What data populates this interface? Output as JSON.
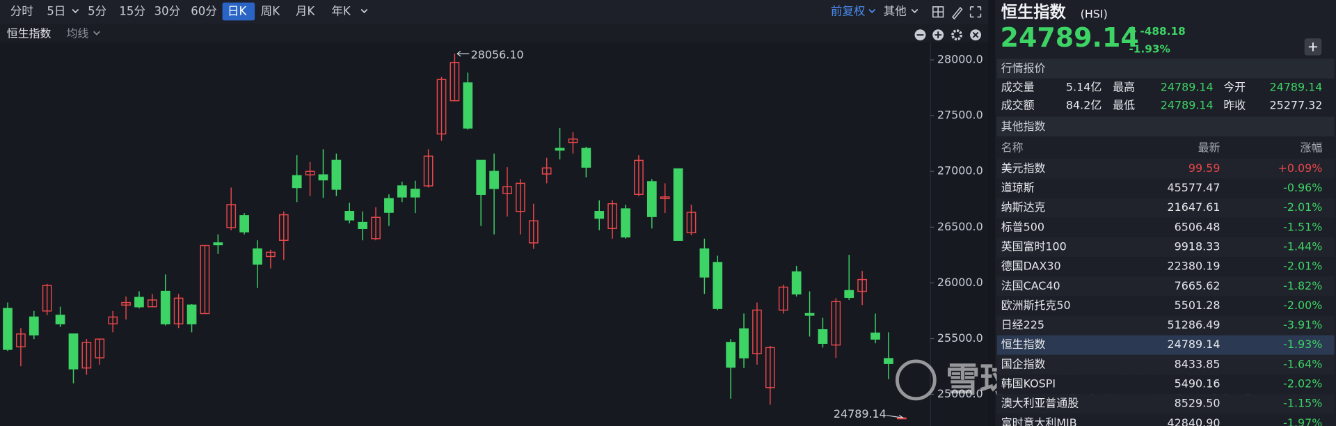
{
  "toolbar": {
    "periods": [
      "分时",
      "5日",
      "5分",
      "15分",
      "30分",
      "60分",
      "日K",
      "周K",
      "月K",
      "年K"
    ],
    "adjust": "前复权",
    "more": "其他"
  },
  "subbar": {
    "name": "恒生指数",
    "ma": "均线"
  },
  "chart_data": {
    "type": "candlestick",
    "up_color": "#e8474a",
    "down_color": "#3ed365",
    "open": [
      25771,
      25427,
      25694,
      25748,
      25710,
      25542,
      25237,
      25328,
      25633,
      25801,
      25870,
      25786,
      25924,
      25633,
      25801,
      25725,
      26359,
      26496,
      26603,
      26305,
      26237,
      26382,
      26962,
      26969,
      26969,
      27099,
      26641,
      26542,
      26397,
      26756,
      26870,
      26840,
      26870,
      27336,
      27634,
      27794,
      27099,
      27000,
      26802,
      26641,
      26359,
      26977,
      27206,
      27260,
      27206,
      26641,
      26488,
      26664,
      26794,
      26908,
      26756,
      27023,
      26450,
      26305,
      26183,
      25466,
      25588,
      25366,
      25061,
      25756,
      26099,
      25725,
      25580,
      25443,
      25931,
      25924,
      25550,
      25321,
      24789.14
    ],
    "high": [
      25824,
      25595,
      25748,
      25992,
      25786,
      25542,
      25496,
      25496,
      25748,
      25878,
      25924,
      25901,
      26076,
      25901,
      25809,
      26336,
      26435,
      26855,
      26626,
      26382,
      26298,
      26641,
      27145,
      27084,
      27199,
      27160,
      26718,
      26641,
      26679,
      26794,
      26908,
      26916,
      27199,
      27847,
      28056.1,
      27886,
      27099,
      27160,
      27038,
      26931,
      26710,
      27122,
      27389,
      27351,
      27221,
      26741,
      26741,
      26702,
      27145,
      26931,
      26893,
      27023,
      26702,
      26397,
      26244,
      25496,
      25725,
      25824,
      25435,
      25985,
      26153,
      25924,
      25687,
      25863,
      26252,
      26107,
      25725,
      25557,
      24789.14
    ],
    "low": [
      25389,
      25252,
      25496,
      25710,
      25603,
      25099,
      25176,
      25267,
      25557,
      25672,
      25771,
      25786,
      25618,
      25595,
      25557,
      25725,
      26260,
      26473,
      26435,
      25954,
      26130,
      26206,
      26725,
      26779,
      26763,
      26779,
      26534,
      26382,
      26382,
      26511,
      26725,
      26626,
      26855,
      27275,
      27634,
      27374,
      26511,
      26435,
      26595,
      26435,
      26305,
      26893,
      27107,
      27160,
      26947,
      26473,
      26397,
      26397,
      26779,
      26488,
      26626,
      26382,
      26427,
      25901,
      25756,
      24962,
      25237,
      25267,
      24908,
      25725,
      25878,
      25519,
      25420,
      25328,
      25847,
      25801,
      25458,
      25137,
      24789.14
    ],
    "close": [
      25404,
      25542,
      25534,
      25977,
      25633,
      25229,
      25466,
      25496,
      25694,
      25824,
      25786,
      25847,
      25633,
      25863,
      25633,
      26336,
      26343,
      26702,
      26458,
      26168,
      26275,
      26611,
      26855,
      27000,
      26924,
      26840,
      26565,
      26488,
      26588,
      26633,
      26771,
      26771,
      27137,
      27824,
      27977,
      27389,
      26794,
      26847,
      26863,
      26893,
      26557,
      27031,
      27191,
      27290,
      27038,
      26580,
      26710,
      26412,
      27099,
      26595,
      26771,
      26382,
      26633,
      26053,
      25771,
      25244,
      25328,
      25756,
      25420,
      25962,
      25901,
      25710,
      25458,
      25832,
      25870,
      26030,
      25496,
      25277.32,
      24789.14
    ],
    "ylim": [
      24770,
      28140
    ],
    "yticks": [
      {
        "value": 25000,
        "label": "25000.0"
      },
      {
        "value": 25500,
        "label": "25500.0"
      },
      {
        "value": 26000,
        "label": "26000.0"
      },
      {
        "value": 26500,
        "label": "26500.0"
      },
      {
        "value": 27000,
        "label": "27000.0"
      },
      {
        "value": 27500,
        "label": "27500.0"
      },
      {
        "value": 28000,
        "label": "28000.0"
      }
    ],
    "annotations": [
      {
        "value": 28056.1,
        "label": "28056.10"
      },
      {
        "value": 24789.14,
        "label": "24789.14"
      }
    ]
  },
  "watermark": "雪球 · 每日经济新闻",
  "quote": {
    "title": "恒生指数",
    "code": "(HSI)",
    "price": "24789.14",
    "change": "-488.18",
    "change_pct": "-1.93%"
  },
  "market": {
    "header": "行情报价",
    "rows": [
      [
        "成交量",
        "5.14亿",
        "最高",
        "24789.14",
        "今开",
        "24789.14"
      ],
      [
        "成交额",
        "84.2亿",
        "最低",
        "24789.14",
        "昨收",
        "25277.32"
      ]
    ]
  },
  "others": {
    "header": "其他指数",
    "columns": [
      "名称",
      "最新",
      "涨幅"
    ],
    "highlight": 9,
    "rows": [
      [
        "美元指数",
        "99.59",
        "+0.09%"
      ],
      [
        "道琼斯",
        "45577.47",
        "-0.96%"
      ],
      [
        "纳斯达克",
        "21647.61",
        "-2.01%"
      ],
      [
        "标普500",
        "6506.48",
        "-1.51%"
      ],
      [
        "英国富时100",
        "9918.33",
        "-1.44%"
      ],
      [
        "德国DAX30",
        "22380.19",
        "-2.01%"
      ],
      [
        "法国CAC40",
        "7665.62",
        "-1.82%"
      ],
      [
        "欧洲斯托克50",
        "5501.28",
        "-2.00%"
      ],
      [
        "日经225",
        "51286.49",
        "-3.91%"
      ],
      [
        "恒生指数",
        "24789.14",
        "-1.93%"
      ],
      [
        "国企指数",
        "8433.85",
        "-1.64%"
      ],
      [
        "韩国KOSPI",
        "5490.16",
        "-2.02%"
      ],
      [
        "澳大利亚普通股",
        "8529.50",
        "-1.15%"
      ],
      [
        "富时意大利MIB",
        "42840.90",
        "-1.97%"
      ]
    ]
  }
}
